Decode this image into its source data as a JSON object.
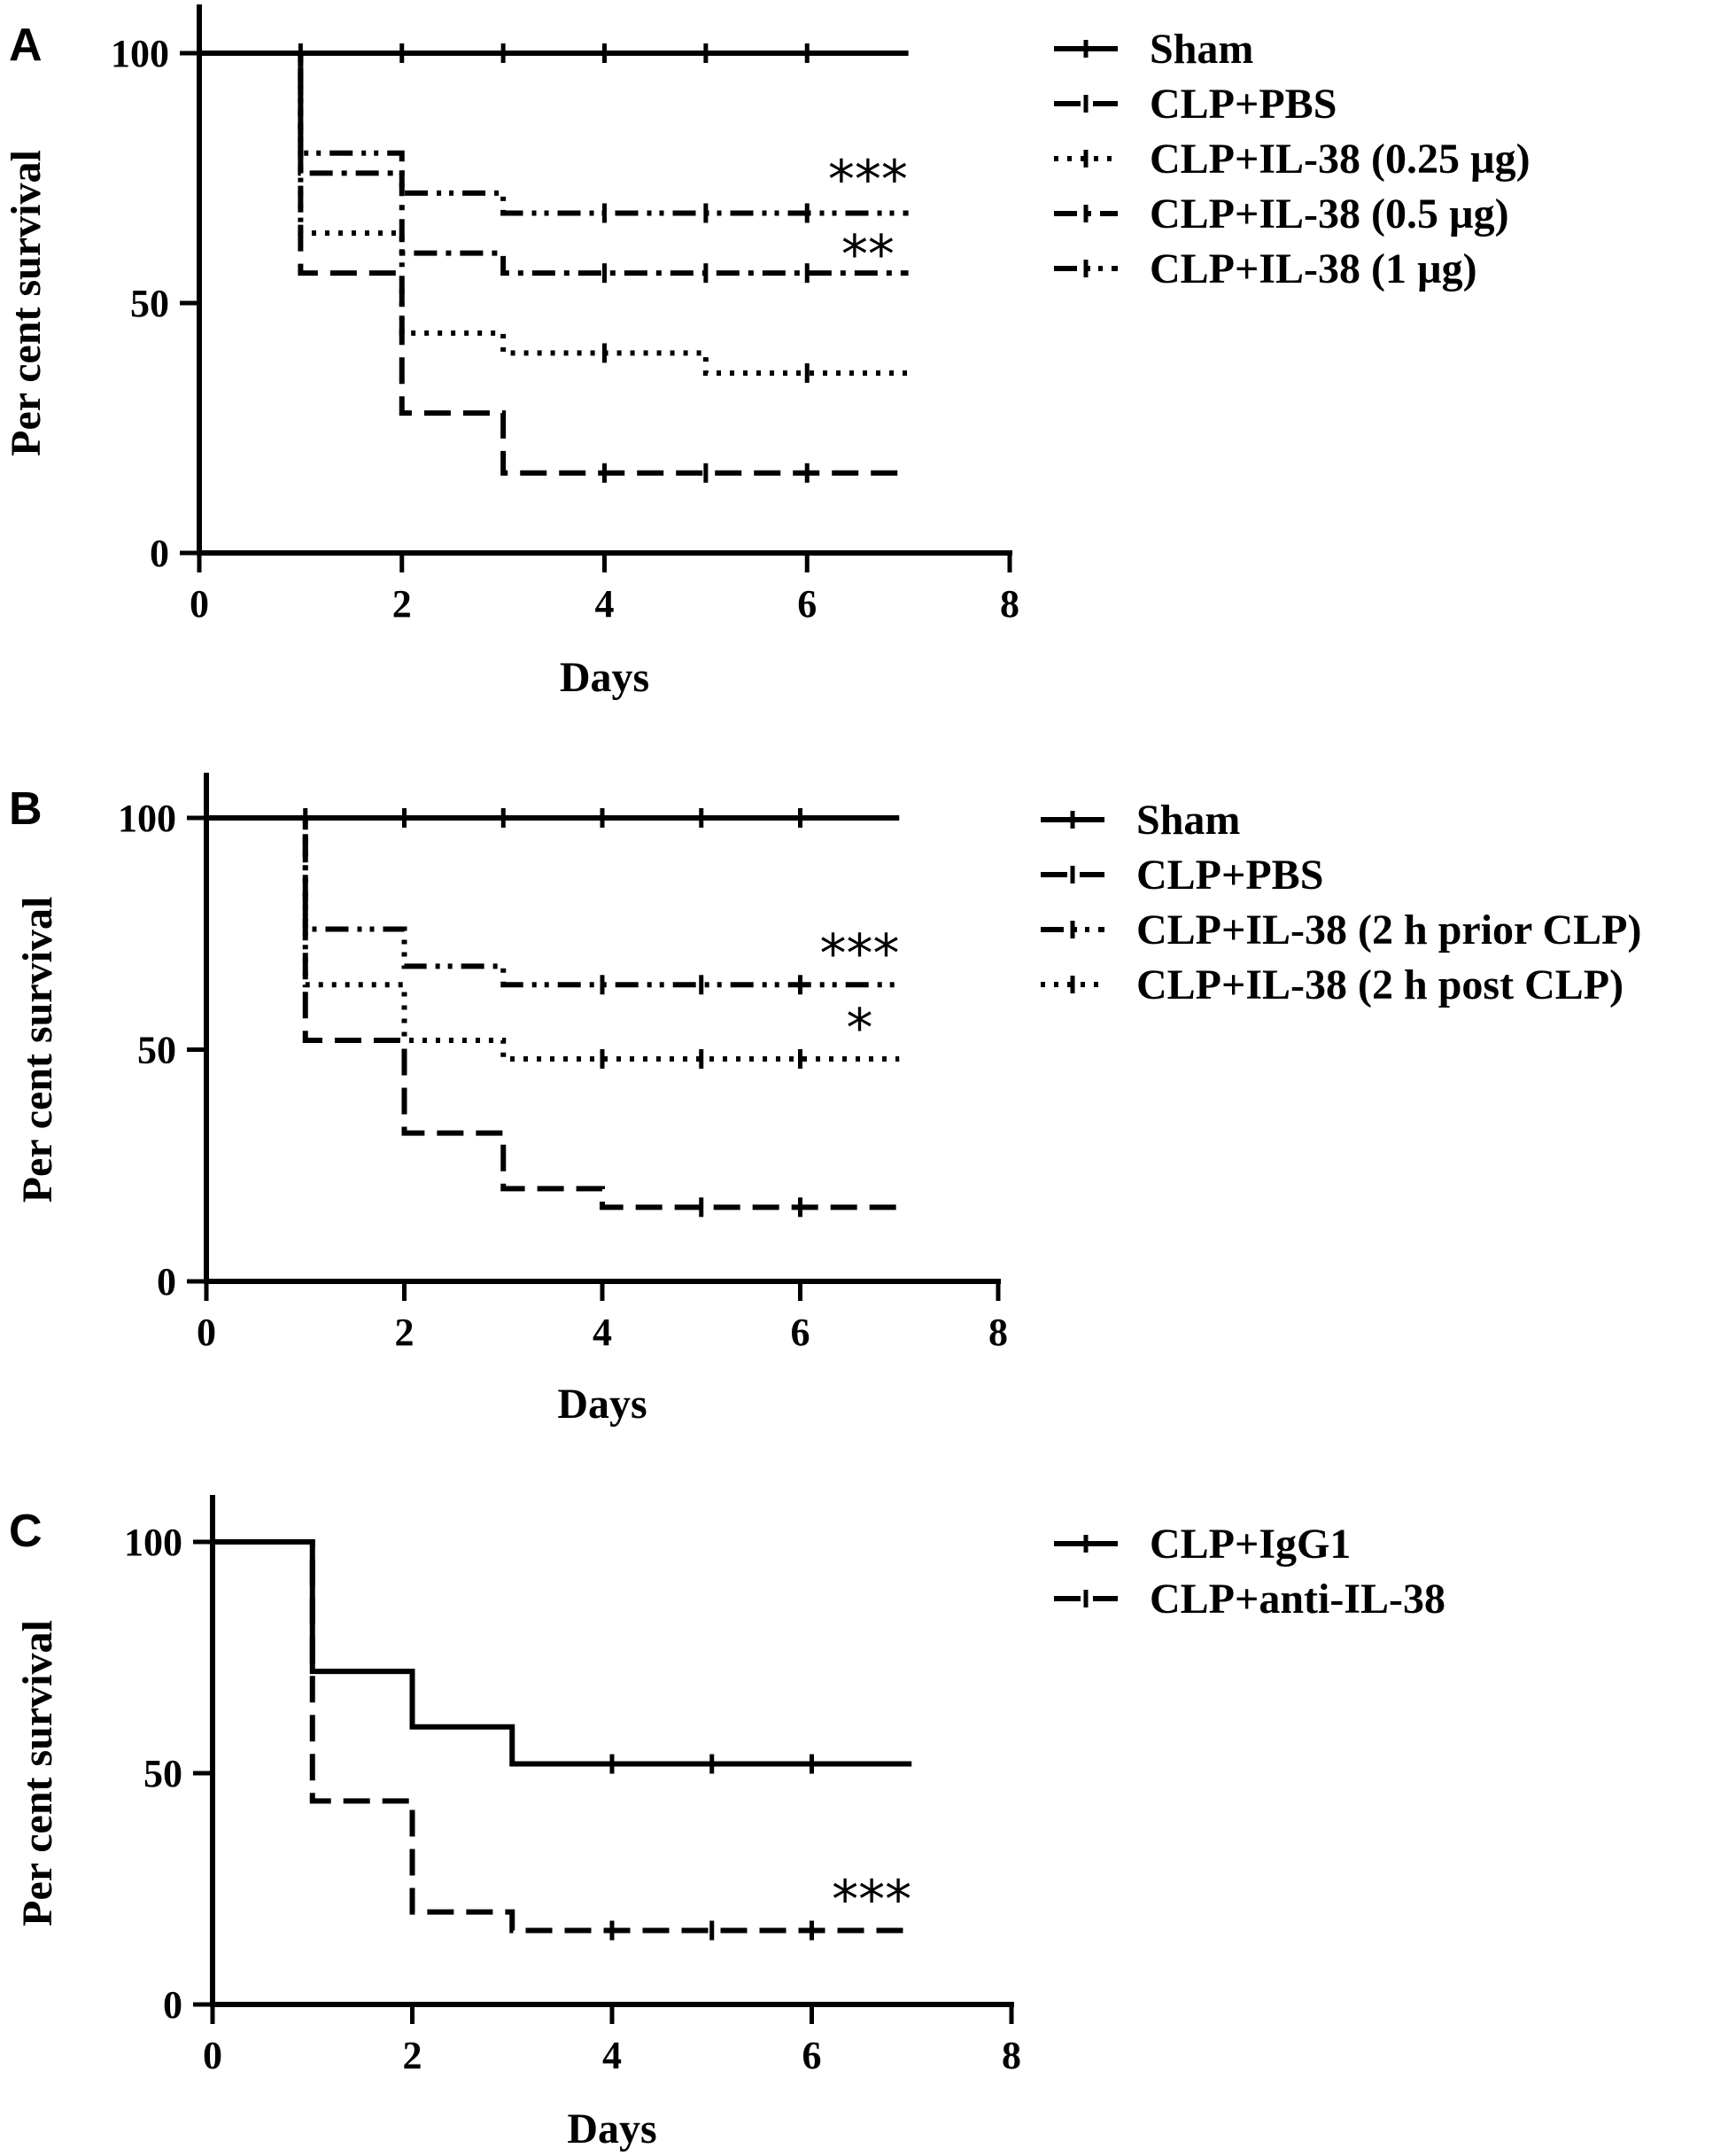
{
  "chart_data": [
    {
      "panel": "A",
      "type": "line",
      "step": true,
      "xlabel": "Days",
      "ylabel": "Per cent survival",
      "xlim": [
        0,
        8
      ],
      "ylim": [
        0,
        100
      ],
      "xticks": [
        "0",
        "2",
        "4",
        "6",
        "8"
      ],
      "yticks": [
        "0",
        "50",
        "100"
      ],
      "series": [
        {
          "name": "Sham",
          "dash": "solid",
          "steps": [
            [
              0,
              100
            ],
            [
              7,
              100
            ]
          ],
          "censor": [
            1,
            2,
            3,
            4,
            5,
            6
          ]
        },
        {
          "name": "CLP+PBS",
          "dash": "dashed",
          "steps": [
            [
              0,
              100
            ],
            [
              1,
              56
            ],
            [
              2,
              28
            ],
            [
              3,
              16
            ],
            [
              7,
              16
            ]
          ],
          "censor": [
            4,
            5,
            6
          ]
        },
        {
          "name": "CLP+IL-38 (0.25 µg)",
          "dash": "dotted",
          "steps": [
            [
              0,
              100
            ],
            [
              1,
              64
            ],
            [
              2,
              44
            ],
            [
              3,
              40
            ],
            [
              5,
              36
            ],
            [
              7,
              36
            ]
          ],
          "censor": [
            4,
            6
          ]
        },
        {
          "name": "CLP+IL-38 (0.5 µg)",
          "dash": "dashdot",
          "steps": [
            [
              0,
              100
            ],
            [
              1,
              76
            ],
            [
              2,
              60
            ],
            [
              3,
              56
            ],
            [
              7,
              56
            ]
          ],
          "censor": [
            4,
            5,
            6
          ]
        },
        {
          "name": "CLP+IL-38 (1 µg)",
          "dash": "dashdotdot",
          "steps": [
            [
              0,
              100
            ],
            [
              1,
              80
            ],
            [
              2,
              72
            ],
            [
              3,
              68
            ],
            [
              7,
              68
            ]
          ],
          "censor": [
            4,
            5,
            6
          ]
        }
      ],
      "annotations": [
        {
          "text": "***",
          "x": 6.6,
          "y": 75
        },
        {
          "text": "**",
          "x": 6.6,
          "y": 60
        }
      ]
    },
    {
      "panel": "B",
      "type": "line",
      "step": true,
      "xlabel": "Days",
      "ylabel": "Per cent survival",
      "xlim": [
        0,
        8
      ],
      "ylim": [
        0,
        100
      ],
      "xticks": [
        "0",
        "2",
        "4",
        "6",
        "8"
      ],
      "yticks": [
        "0",
        "50",
        "100"
      ],
      "series": [
        {
          "name": "Sham",
          "dash": "solid",
          "steps": [
            [
              0,
              100
            ],
            [
              7,
              100
            ]
          ],
          "censor": [
            1,
            2,
            3,
            4,
            5,
            6
          ]
        },
        {
          "name": "CLP+PBS",
          "dash": "dashed",
          "steps": [
            [
              0,
              100
            ],
            [
              1,
              52
            ],
            [
              2,
              32
            ],
            [
              3,
              20
            ],
            [
              4,
              16
            ],
            [
              7,
              16
            ]
          ],
          "censor": [
            5,
            6
          ]
        },
        {
          "name": "CLP+IL-38 (2 h prior CLP)",
          "dash": "dashdotdot",
          "steps": [
            [
              0,
              100
            ],
            [
              1,
              76
            ],
            [
              2,
              68
            ],
            [
              3,
              64
            ],
            [
              7,
              64
            ]
          ],
          "censor": [
            4,
            5,
            6
          ]
        },
        {
          "name": "CLP+IL-38 (2 h post CLP)",
          "dash": "dotted",
          "steps": [
            [
              0,
              100
            ],
            [
              1,
              64
            ],
            [
              2,
              52
            ],
            [
              3,
              48
            ],
            [
              7,
              48
            ]
          ],
          "censor": [
            4,
            5,
            6
          ]
        }
      ],
      "annotations": [
        {
          "text": "***",
          "x": 6.6,
          "y": 71
        },
        {
          "text": "*",
          "x": 6.6,
          "y": 55
        }
      ]
    },
    {
      "panel": "C",
      "type": "line",
      "step": true,
      "xlabel": "Days",
      "ylabel": "Per cent survival",
      "xlim": [
        0,
        8
      ],
      "ylim": [
        0,
        100
      ],
      "xticks": [
        "0",
        "2",
        "4",
        "6",
        "8"
      ],
      "yticks": [
        "0",
        "50",
        "100"
      ],
      "series": [
        {
          "name": "CLP+IgG1",
          "dash": "solid",
          "steps": [
            [
              0,
              100
            ],
            [
              1,
              72
            ],
            [
              2,
              60
            ],
            [
              3,
              52
            ],
            [
              7,
              52
            ]
          ],
          "censor": [
            4,
            5,
            6
          ]
        },
        {
          "name": "CLP+anti-IL-38",
          "dash": "dashed",
          "steps": [
            [
              0,
              100
            ],
            [
              1,
              44
            ],
            [
              2,
              20
            ],
            [
              3,
              16
            ],
            [
              7,
              16
            ]
          ],
          "censor": [
            4,
            5,
            6
          ]
        }
      ],
      "annotations": [
        {
          "text": "***",
          "x": 6.6,
          "y": 23
        }
      ]
    }
  ]
}
